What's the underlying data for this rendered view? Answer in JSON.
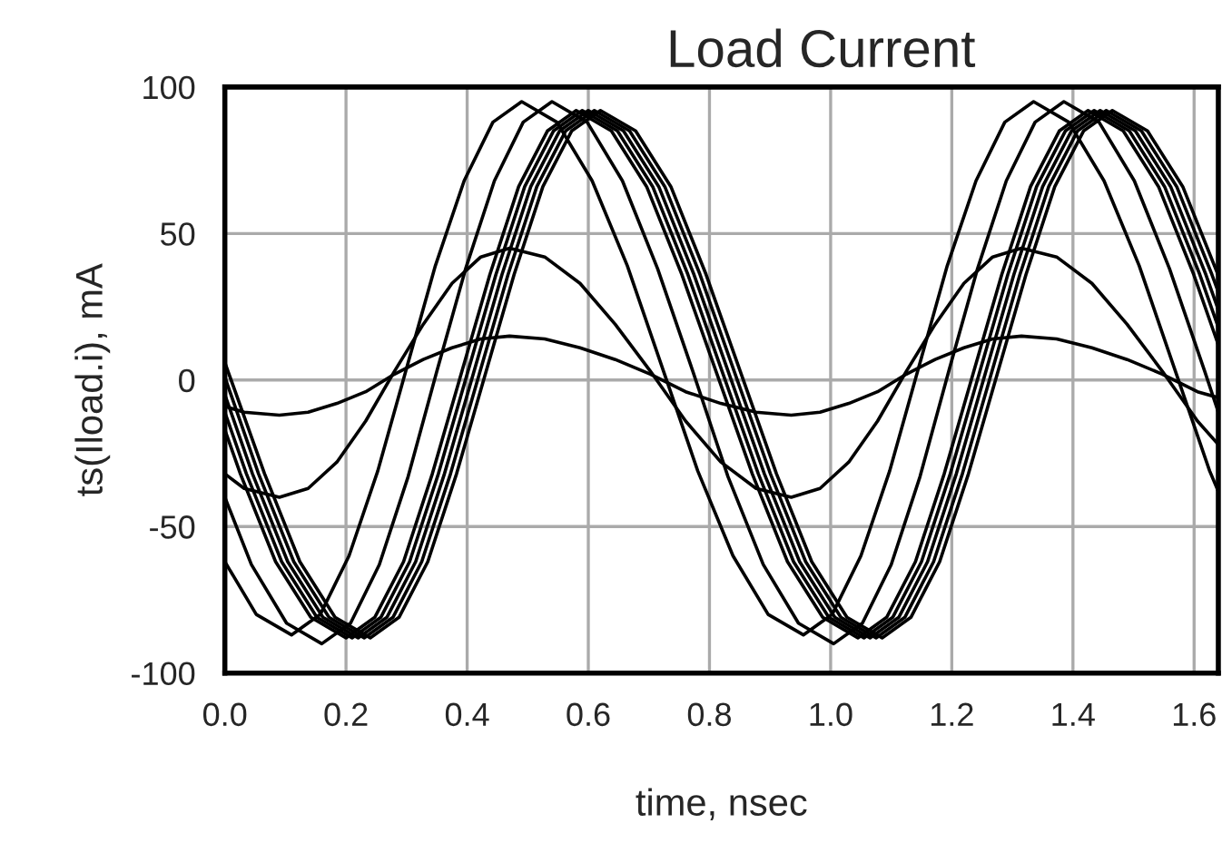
{
  "chart_data": {
    "type": "line",
    "title": "Load Current",
    "xlabel": "time, nsec",
    "ylabel": "ts(Iload.i), mA",
    "xlim": [
      0,
      1.64
    ],
    "ylim": [
      -100,
      100
    ],
    "xticks": [
      {
        "value": 0,
        "label": "0.0"
      },
      0.2,
      0.4,
      0.6,
      0.8,
      {
        "value": 1,
        "label": "1.0"
      },
      1.2,
      1.4,
      1.6
    ],
    "yticks": [
      -100,
      -50,
      0,
      50,
      100
    ],
    "grid": true,
    "legend": false,
    "series": [
      {
        "color": "#000000",
        "x": [
          0,
          0.0319,
          0.09,
          0.1375,
          0.185,
          0.2325,
          0.28,
          0.3275,
          0.375,
          0.4225,
          0.47,
          0.5281,
          0.5863,
          0.6444,
          0.7025,
          0.7606,
          0.8188,
          0.8769,
          0.935,
          0.9825,
          1.03,
          1.0775,
          1.125,
          1.1725,
          1.22,
          1.2675,
          1.315,
          1.3731,
          1.4313,
          1.4894,
          1.5475,
          1.6056,
          1.64
        ],
        "values": [
          -9,
          -11,
          -12,
          -11,
          -8,
          -4,
          2,
          7,
          11,
          14,
          15,
          14,
          11,
          7,
          2,
          -4,
          -8,
          -11,
          -12,
          -11,
          -8,
          -4,
          2,
          7,
          11,
          14,
          15,
          14,
          11,
          7,
          2,
          -4,
          -6
        ]
      },
      {
        "color": "#000000",
        "x": [
          0,
          0.0319,
          0.09,
          0.1375,
          0.185,
          0.2325,
          0.28,
          0.3275,
          0.375,
          0.4225,
          0.47,
          0.5281,
          0.5863,
          0.6444,
          0.7025,
          0.7606,
          0.8188,
          0.8769,
          0.935,
          0.9825,
          1.03,
          1.0775,
          1.125,
          1.1725,
          1.22,
          1.2675,
          1.315,
          1.3731,
          1.4313,
          1.4894,
          1.5475,
          1.6056,
          1.64
        ],
        "values": [
          -32,
          -37,
          -40,
          -37,
          -28,
          -14,
          3,
          19,
          33,
          42,
          45,
          42,
          33,
          19,
          3,
          -14,
          -28,
          -37,
          -40,
          -37,
          -28,
          -14,
          3,
          19,
          33,
          42,
          45,
          42,
          33,
          19,
          3,
          -14,
          -22
        ]
      },
      {
        "color": "#000000",
        "x": [
          0,
          0.0519,
          0.11,
          0.1575,
          0.205,
          0.2525,
          0.3,
          0.3475,
          0.395,
          0.4425,
          0.49,
          0.5481,
          0.6063,
          0.6644,
          0.7225,
          0.7806,
          0.8388,
          0.8969,
          0.955,
          1.0025,
          1.05,
          1.0975,
          1.145,
          1.1925,
          1.24,
          1.2875,
          1.335,
          1.3931,
          1.4513,
          1.5094,
          1.5675,
          1.6256,
          1.64
        ],
        "values": [
          -62,
          -80,
          -87,
          -80,
          -60,
          -31,
          4,
          39,
          68,
          88,
          95,
          88,
          68,
          39,
          4,
          -31,
          -60,
          -80,
          -87,
          -80,
          -60,
          -31,
          4,
          39,
          68,
          88,
          95,
          88,
          68,
          39,
          4,
          -31,
          -38
        ]
      },
      {
        "color": "#000000",
        "x": [
          0,
          0.0438,
          0.1019,
          0.16,
          0.2075,
          0.255,
          0.3025,
          0.35,
          0.3975,
          0.445,
          0.4925,
          0.54,
          0.5981,
          0.6563,
          0.7144,
          0.7725,
          0.8306,
          0.8888,
          0.9469,
          1.005,
          1.0525,
          1.1,
          1.1475,
          1.195,
          1.2425,
          1.29,
          1.3375,
          1.385,
          1.4431,
          1.5013,
          1.5594,
          1.6175,
          1.64
        ],
        "values": [
          -40,
          -63,
          -83,
          -90,
          -83,
          -63,
          -33,
          3,
          38,
          68,
          88,
          95,
          88,
          68,
          38,
          3,
          -33,
          -63,
          -83,
          -90,
          -83,
          -63,
          -33,
          3,
          38,
          68,
          88,
          95,
          88,
          68,
          38,
          3,
          -11
        ]
      },
      {
        "color": "#000000",
        "x": [
          0,
          0.0256,
          0.0838,
          0.1419,
          0.2,
          0.2475,
          0.295,
          0.3425,
          0.39,
          0.4375,
          0.485,
          0.5325,
          0.58,
          0.6381,
          0.6963,
          0.7544,
          0.8125,
          0.8706,
          0.9288,
          0.9869,
          1.045,
          1.0925,
          1.14,
          1.1875,
          1.235,
          1.2825,
          1.33,
          1.3775,
          1.425,
          1.4831,
          1.5413,
          1.5994,
          1.64
        ],
        "values": [
          -17,
          -32,
          -62,
          -81,
          -88,
          -81,
          -62,
          -32,
          2,
          36,
          66,
          85,
          92,
          85,
          66,
          36,
          2,
          -32,
          -62,
          -81,
          -88,
          -81,
          -62,
          -32,
          2,
          36,
          66,
          85,
          92,
          85,
          66,
          36,
          12
        ]
      },
      {
        "color": "#000000",
        "x": [
          0,
          0.0356,
          0.0938,
          0.1519,
          0.21,
          0.2575,
          0.305,
          0.3525,
          0.4,
          0.4475,
          0.495,
          0.5425,
          0.59,
          0.6481,
          0.7063,
          0.7644,
          0.8225,
          0.8806,
          0.9388,
          0.9969,
          1.055,
          1.1025,
          1.15,
          1.1975,
          1.245,
          1.2925,
          1.34,
          1.3875,
          1.435,
          1.4931,
          1.5513,
          1.6094,
          1.64
        ],
        "values": [
          -11,
          -32,
          -62,
          -81,
          -88,
          -81,
          -62,
          -32,
          2,
          36,
          66,
          85,
          92,
          85,
          66,
          36,
          2,
          -32,
          -62,
          -81,
          -88,
          -81,
          -62,
          -32,
          2,
          36,
          66,
          85,
          92,
          85,
          66,
          36,
          18
        ]
      },
      {
        "color": "#000000",
        "x": [
          0,
          0.0456,
          0.1038,
          0.1619,
          0.22,
          0.2675,
          0.315,
          0.3625,
          0.41,
          0.4575,
          0.505,
          0.5525,
          0.6,
          0.6581,
          0.7163,
          0.7744,
          0.8325,
          0.8906,
          0.9488,
          1.0069,
          1.065,
          1.1125,
          1.16,
          1.2075,
          1.255,
          1.3025,
          1.35,
          1.3975,
          1.445,
          1.5031,
          1.5613,
          1.6194,
          1.64
        ],
        "values": [
          -5,
          -32,
          -62,
          -81,
          -88,
          -81,
          -62,
          -32,
          2,
          36,
          66,
          85,
          92,
          85,
          66,
          36,
          2,
          -32,
          -62,
          -81,
          -88,
          -81,
          -62,
          -32,
          2,
          36,
          66,
          85,
          92,
          85,
          66,
          36,
          24
        ]
      },
      {
        "color": "#000000",
        "x": [
          0,
          0.0556,
          0.1138,
          0.1719,
          0.23,
          0.2775,
          0.325,
          0.3725,
          0.42,
          0.4675,
          0.515,
          0.5625,
          0.61,
          0.6681,
          0.7263,
          0.7844,
          0.8425,
          0.9006,
          0.9588,
          1.0169,
          1.075,
          1.1225,
          1.17,
          1.2175,
          1.265,
          1.3125,
          1.36,
          1.4075,
          1.455,
          1.5131,
          1.5713,
          1.6294,
          1.64
        ],
        "values": [
          1,
          -32,
          -62,
          -81,
          -88,
          -81,
          -62,
          -32,
          2,
          36,
          66,
          85,
          92,
          85,
          66,
          36,
          2,
          -32,
          -62,
          -81,
          -88,
          -81,
          -62,
          -32,
          2,
          36,
          66,
          85,
          92,
          85,
          66,
          36,
          30
        ]
      },
      {
        "color": "#000000",
        "x": [
          0,
          0.0656,
          0.1238,
          0.1819,
          0.24,
          0.2875,
          0.335,
          0.3825,
          0.43,
          0.4775,
          0.525,
          0.5725,
          0.62,
          0.6781,
          0.7363,
          0.7944,
          0.8525,
          0.9106,
          0.9688,
          1.0269,
          1.085,
          1.1325,
          1.18,
          1.2275,
          1.275,
          1.3225,
          1.37,
          1.4175,
          1.465,
          1.5231,
          1.5813,
          1.6394
        ],
        "values": [
          6,
          -32,
          -62,
          -81,
          -88,
          -81,
          -62,
          -32,
          2,
          36,
          66,
          85,
          92,
          85,
          66,
          36,
          2,
          -32,
          -62,
          -81,
          -88,
          -81,
          -62,
          -32,
          2,
          36,
          66,
          85,
          92,
          85,
          66,
          36
        ]
      }
    ]
  }
}
